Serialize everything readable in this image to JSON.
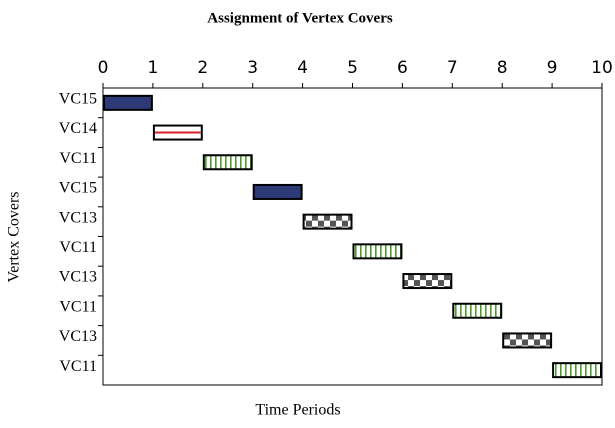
{
  "chart_data": {
    "type": "gantt",
    "title": "Assignment of Vertex Covers",
    "xlabel": "Time Periods",
    "ylabel": "Vertex Covers",
    "categories": [
      "VC15",
      "VC14",
      "VC11",
      "VC15",
      "VC13",
      "VC11",
      "VC13",
      "VC11",
      "VC13",
      "VC11"
    ],
    "starts": [
      0,
      1,
      2,
      3,
      4,
      5,
      6,
      7,
      8,
      9
    ],
    "ends": [
      1,
      2,
      3,
      4,
      5,
      6,
      7,
      8,
      9,
      10
    ],
    "patterns": [
      "solid",
      "line",
      "stripes",
      "solid",
      "checker",
      "stripes",
      "checker",
      "stripes",
      "checker",
      "stripes"
    ],
    "colors": [
      "#2e3a78",
      "#d42020",
      "#4f9a2a",
      "#2e3a78",
      "#555555",
      "#4f9a2a",
      "#555555",
      "#4f9a2a",
      "#555555",
      "#4f9a2a"
    ],
    "xlim": [
      0,
      10
    ],
    "xticks": [
      0,
      1,
      2,
      3,
      4,
      5,
      6,
      7,
      8,
      9,
      10
    ]
  }
}
